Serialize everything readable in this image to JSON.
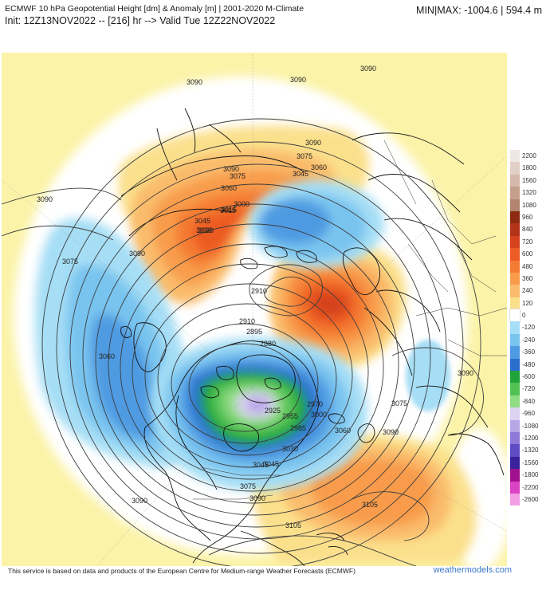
{
  "header": {
    "title": "ECMWF 10 hPa Geopotential Height [dm] & Anomaly [m] | 2001-2020 M-Climate",
    "init": "Init: 12Z13NOV2022 -- [216] hr --> Valid Tue 12Z22NOV2022",
    "minmax": "MIN|MAX: -1004.6 | 594.4 m"
  },
  "legend": {
    "items": [
      {
        "label": "2200",
        "color": "#efe7e4"
      },
      {
        "label": "1800",
        "color": "#e2d0c8"
      },
      {
        "label": "1560",
        "color": "#d4b8aa"
      },
      {
        "label": "1320",
        "color": "#c59f8c"
      },
      {
        "label": "1080",
        "color": "#b3846f"
      },
      {
        "label": "960",
        "color": "#8c2a12"
      },
      {
        "label": "840",
        "color": "#b33418"
      },
      {
        "label": "720",
        "color": "#d6421d"
      },
      {
        "label": "600",
        "color": "#ec5c24"
      },
      {
        "label": "480",
        "color": "#f47b33"
      },
      {
        "label": "360",
        "color": "#f89c4c"
      },
      {
        "label": "240",
        "color": "#fabc6c"
      },
      {
        "label": "120",
        "color": "#fbe08c"
      },
      {
        "label": "0",
        "color": "#ffffff"
      },
      {
        "label": "-120",
        "color": "#a6def5"
      },
      {
        "label": "-240",
        "color": "#79c4ef"
      },
      {
        "label": "-360",
        "color": "#4f9be2"
      },
      {
        "label": "-480",
        "color": "#2b6fce"
      },
      {
        "label": "-600",
        "color": "#1fa33a"
      },
      {
        "label": "-720",
        "color": "#52c255"
      },
      {
        "label": "-840",
        "color": "#8fdc82"
      },
      {
        "label": "-960",
        "color": "#dcd2f2"
      },
      {
        "label": "-1080",
        "color": "#b7a6e6"
      },
      {
        "label": "-1200",
        "color": "#8f7ad8"
      },
      {
        "label": "-1320",
        "color": "#5f4bc2"
      },
      {
        "label": "-1560",
        "color": "#3a229c"
      },
      {
        "label": "-1800",
        "color": "#a1118e"
      },
      {
        "label": "-2200",
        "color": "#d943c4"
      },
      {
        "label": "-2600",
        "color": "#f29ee6"
      }
    ]
  },
  "contour_labels": [
    {
      "text": "3090"
    },
    {
      "text": "3090"
    },
    {
      "text": "3090"
    },
    {
      "text": "3090"
    },
    {
      "text": "3075"
    },
    {
      "text": "3060"
    },
    {
      "text": "3045"
    },
    {
      "text": "3030"
    },
    {
      "text": "3015"
    },
    {
      "text": "3000"
    },
    {
      "text": "3090"
    },
    {
      "text": "3075"
    },
    {
      "text": "3060"
    },
    {
      "text": "3045"
    },
    {
      "text": "3030"
    },
    {
      "text": "3015"
    },
    {
      "text": "2910"
    },
    {
      "text": "2910"
    },
    {
      "text": "2895"
    },
    {
      "text": "2880"
    },
    {
      "text": "2925"
    },
    {
      "text": "2955"
    },
    {
      "text": "2985"
    },
    {
      "text": "3000"
    },
    {
      "text": "3030"
    },
    {
      "text": "3045"
    },
    {
      "text": "3075"
    },
    {
      "text": "3090"
    },
    {
      "text": "3090"
    },
    {
      "text": "3060"
    },
    {
      "text": "3075"
    },
    {
      "text": "3090"
    },
    {
      "text": "3090"
    },
    {
      "text": "3105"
    },
    {
      "text": "3105"
    },
    {
      "text": "3060"
    },
    {
      "text": "3075"
    },
    {
      "text": "3090"
    },
    {
      "text": "3045"
    },
    {
      "text": "2970"
    }
  ],
  "footer": "This service is based on data and products of the European Centre for Medium-range Weather Forecasts (ECMWF)",
  "brand": "weathermodels.com"
}
